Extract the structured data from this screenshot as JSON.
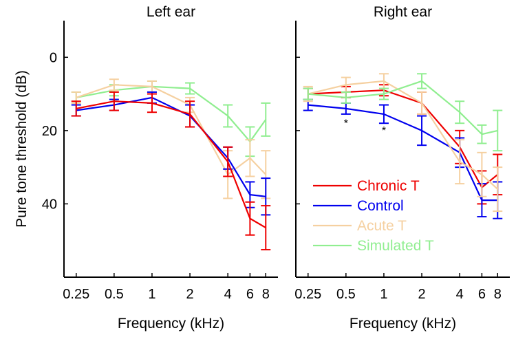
{
  "chart_data": [
    {
      "type": "line",
      "title": "Left ear",
      "xlabel": "Frequency (kHz)",
      "ylabel": "Pure tone threshold (dB)",
      "x": [
        0.25,
        0.5,
        1,
        2,
        4,
        6,
        8
      ],
      "x_tick_labels": [
        "0.25",
        "0.5",
        "1",
        "2",
        "4",
        "6",
        "8"
      ],
      "y_ticks": [
        0,
        20,
        40
      ],
      "y_tick_labels": [
        "0",
        "20",
        "40"
      ],
      "xlim": [
        0.2,
        10
      ],
      "ylim": [
        60,
        -10
      ],
      "y_reversed": true,
      "x_scale": "log",
      "grid": false,
      "series": [
        {
          "name": "Simulated T",
          "color": "#90ee90",
          "values": [
            11,
            9,
            8,
            8.5,
            16,
            23,
            17
          ],
          "err": [
            1.5,
            1.5,
            1.5,
            1.5,
            3,
            4,
            4.5
          ]
        },
        {
          "name": "Acute T",
          "color": "#f5d0a0",
          "values": [
            11,
            7.5,
            8,
            13,
            32,
            27.5,
            32
          ],
          "err": [
            1.5,
            1.5,
            1.5,
            2,
            6.5,
            5,
            6.5
          ]
        },
        {
          "name": "Control",
          "color": "#0000ee",
          "values": [
            14.5,
            13,
            11,
            16,
            27.5,
            37.5,
            38
          ],
          "err": [
            1.5,
            1.5,
            1.5,
            3,
            3,
            3.5,
            5
          ]
        },
        {
          "name": "Chronic T",
          "color": "#ee0000",
          "values": [
            14,
            12,
            12.5,
            15.5,
            28.5,
            44,
            46.5
          ],
          "err": [
            2,
            2.5,
            2.5,
            3.5,
            4,
            4.5,
            6
          ]
        }
      ]
    },
    {
      "type": "line",
      "title": "Right ear",
      "xlabel": "Frequency (kHz)",
      "x": [
        0.25,
        0.5,
        1,
        2,
        4,
        6,
        8
      ],
      "x_tick_labels": [
        "0.25",
        "0.5",
        "1",
        "2",
        "4",
        "6",
        "8"
      ],
      "xlim": [
        0.2,
        10
      ],
      "ylim": [
        60,
        -10
      ],
      "y_reversed": true,
      "x_scale": "log",
      "grid": false,
      "legend": "lower-left",
      "annotations": [
        {
          "text": "*",
          "x": 0.5,
          "y": 17.5
        },
        {
          "text": "*",
          "x": 1,
          "y": 19.5
        }
      ],
      "series": [
        {
          "name": "Chronic T",
          "color": "#ee0000",
          "values": [
            10,
            9.5,
            9,
            12.5,
            24.5,
            35.5,
            32
          ],
          "err": [
            1.5,
            1.5,
            1.5,
            3,
            4.5,
            4.5,
            5.5
          ]
        },
        {
          "name": "Control",
          "color": "#0000ee",
          "values": [
            13,
            14,
            15.5,
            20,
            26,
            39,
            39
          ],
          "err": [
            1.5,
            1.5,
            2.5,
            4,
            4,
            4.5,
            5
          ]
        },
        {
          "name": "Acute T",
          "color": "#f5d0a0",
          "values": [
            10,
            7.5,
            6.5,
            12.5,
            28.5,
            32,
            36
          ],
          "err": [
            2,
            2,
            2,
            3,
            6,
            6,
            6
          ]
        },
        {
          "name": "Simulated T",
          "color": "#90ee90",
          "values": [
            10,
            11,
            10,
            6.5,
            15,
            21,
            20
          ],
          "err": [
            1.5,
            1.5,
            1.5,
            2,
            3,
            2.5,
            5.5
          ]
        }
      ]
    }
  ]
}
